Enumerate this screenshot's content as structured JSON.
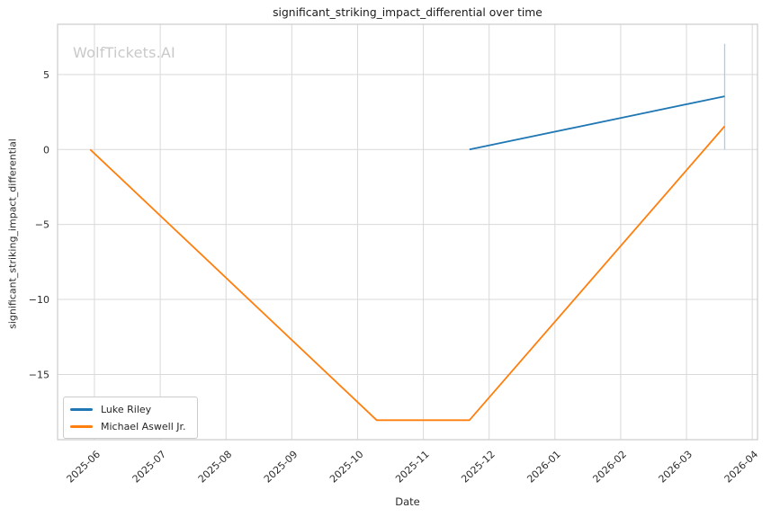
{
  "watermark": "WolfTickets.AI",
  "chart_data": {
    "type": "line",
    "title": "significant_striking_impact_differential over time",
    "xlabel": "Date",
    "ylabel": "significant_striking_impact_differential",
    "grid": true,
    "legend_position": "lower left",
    "x_tick_labels": [
      "2025-06",
      "2025-07",
      "2025-08",
      "2025-09",
      "2025-10",
      "2025-11",
      "2025-12",
      "2026-01",
      "2026-02",
      "2026-03",
      "2026-04"
    ],
    "y_ticks": [
      5,
      0,
      -5,
      -10,
      -15
    ],
    "xlim_months_from_2025_06": [
      -0.561,
      10.08
    ],
    "ylim": [
      -19.35,
      8.35
    ],
    "series": [
      {
        "name": "Luke Riley",
        "color": "#1f77b4",
        "points": [
          [
            "2025-11-22",
            0.0
          ],
          [
            "2026-03-19",
            3.55
          ]
        ]
      },
      {
        "name": "Michael Aswell Jr.",
        "color": "#ff7f0e",
        "points": [
          [
            "2025-05-30",
            0.0
          ],
          [
            "2025-10-10",
            -18.05
          ],
          [
            "2025-11-22",
            -18.05
          ],
          [
            "2026-03-19",
            1.55
          ]
        ]
      }
    ],
    "error_bar": {
      "series": "Luke Riley",
      "x": "2026-03-19",
      "y_low": 0.0,
      "y_high": 7.05,
      "color": "#a9cde6"
    },
    "style": {
      "grid_color": "#d9d9d9",
      "spine_color": "#cccccc",
      "tick_label_color": "#2b2b2b"
    }
  }
}
